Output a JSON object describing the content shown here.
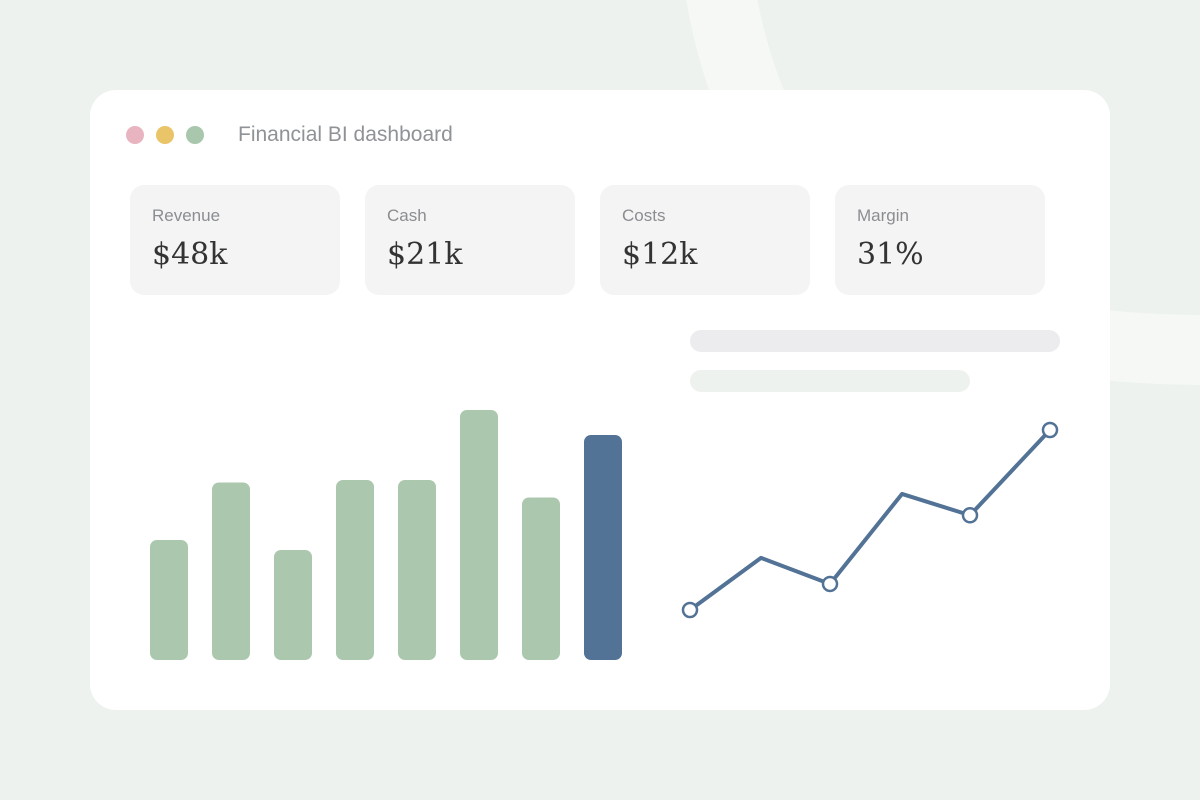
{
  "window": {
    "title": "Financial BI dashboard",
    "controls": [
      {
        "name": "close",
        "color": "#e8b4c0"
      },
      {
        "name": "minimize",
        "color": "#e9c468"
      },
      {
        "name": "maximize",
        "color": "#a9c7ac"
      }
    ]
  },
  "kpis": [
    {
      "label": "Revenue",
      "value": "$48k"
    },
    {
      "label": "Cash",
      "value": "$21k"
    },
    {
      "label": "Costs",
      "value": "$12k"
    },
    {
      "label": "Margin",
      "value": "31%"
    }
  ],
  "colors": {
    "background": "#eef2ee",
    "card": "#ffffff",
    "kpi_card": "#f5f4f5",
    "bar": "#abc7ad",
    "bar_highlight": "#527296",
    "line": "#527296",
    "skeleton_1": "#ecebed",
    "skeleton_2": "#eef2ee"
  },
  "chart_data": [
    {
      "type": "bar",
      "values": [
        48,
        71,
        44,
        72,
        72,
        100,
        65,
        90
      ],
      "highlight_index": 7,
      "ylim": [
        0,
        100
      ]
    },
    {
      "type": "line",
      "x": [
        0,
        1,
        2,
        3,
        4,
        5
      ],
      "values": [
        0,
        22,
        11,
        49,
        40,
        76
      ],
      "markers": [
        0,
        2,
        4,
        5
      ],
      "ylim": [
        0,
        76
      ]
    }
  ]
}
